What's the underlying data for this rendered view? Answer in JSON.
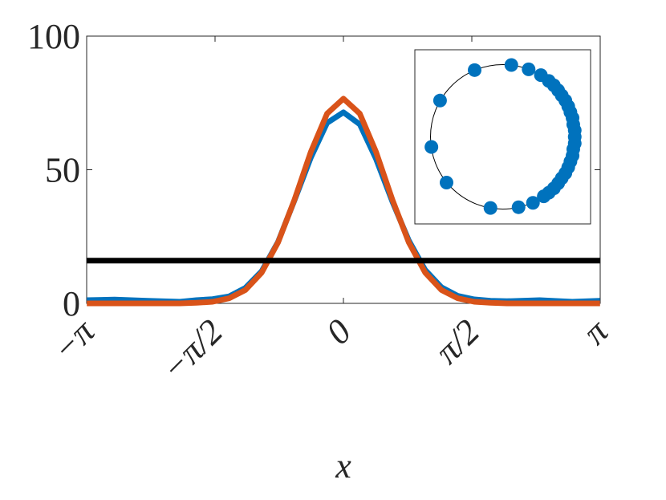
{
  "chart_data": [
    {
      "type": "line",
      "x_label": "x",
      "x": [
        -3.14,
        -2.8,
        -2.4,
        -2.0,
        -1.8,
        -1.6,
        -1.4,
        -1.2,
        -1.0,
        -0.8,
        -0.6,
        -0.4,
        -0.2,
        0,
        0.2,
        0.4,
        0.6,
        0.8,
        1.0,
        1.2,
        1.4,
        1.6,
        1.8,
        2.0,
        2.4,
        2.8,
        3.14
      ],
      "series": [
        {
          "color": "#0072bd",
          "width": 7,
          "values": [
            1.2,
            1.4,
            1.0,
            0.6,
            1.2,
            1.6,
            2.6,
            5.8,
            12,
            23,
            38.5,
            54.5,
            67.5,
            71.5,
            67,
            54,
            38,
            23.5,
            12.5,
            6,
            2.8,
            1.5,
            1.0,
            0.8,
            1.2,
            0.6,
            1.0
          ]
        },
        {
          "color": "#d95319",
          "width": 7,
          "values": [
            0,
            0,
            0,
            0,
            0.2,
            0.6,
            1.9,
            5.0,
            11.5,
            22.8,
            38.7,
            56.6,
            71.0,
            76.6,
            71.0,
            56.6,
            38.7,
            22.8,
            11.5,
            5.0,
            1.9,
            0.6,
            0.2,
            0,
            0,
            0,
            0
          ]
        },
        {
          "color": "#000000",
          "width": 7,
          "values": [
            16,
            16,
            16,
            16,
            16,
            16,
            16,
            16,
            16,
            16,
            16,
            16,
            16,
            16,
            16,
            16,
            16,
            16,
            16,
            16,
            16,
            16,
            16,
            16,
            16,
            16,
            16
          ]
        }
      ],
      "xlim": [
        -3.1416,
        3.1416
      ],
      "xticks": [
        {
          "value": -3.1416,
          "label": "−π"
        },
        {
          "value": -1.5708,
          "label": "−π/2"
        },
        {
          "value": 0,
          "label": "0"
        },
        {
          "value": 1.5708,
          "label": "π/2"
        },
        {
          "value": 3.1416,
          "label": "π"
        }
      ],
      "ylim": [
        0,
        100
      ],
      "yticks": [
        0,
        50,
        100
      ]
    },
    {
      "type": "scatter",
      "color": "#0072bd",
      "x": [
        -0.39,
        0.12,
        0.36,
        0.53,
        0.64,
        0.71,
        0.77,
        0.82,
        0.87,
        0.91,
        0.94,
        0.97,
        0.98,
        1.0,
        1.0,
        1.0,
        0.98,
        0.97,
        0.94,
        0.91,
        0.87,
        0.82,
        0.77,
        0.71,
        0.64,
        0.57,
        0.42,
        0.22,
        -0.17,
        -0.78,
        -0.99,
        -0.87
      ],
      "y": [
        0.92,
        0.99,
        0.93,
        0.85,
        0.77,
        0.71,
        0.64,
        0.57,
        0.5,
        0.42,
        0.34,
        0.26,
        0.17,
        0.09,
        0,
        -0.09,
        -0.17,
        -0.26,
        -0.34,
        -0.42,
        -0.5,
        -0.57,
        -0.64,
        -0.71,
        -0.77,
        -0.82,
        -0.91,
        -0.97,
        -0.98,
        -0.63,
        -0.14,
        0.5
      ],
      "xlim": [
        -1.22,
        1.22
      ],
      "ylim": [
        -1.2,
        1.2
      ]
    }
  ]
}
